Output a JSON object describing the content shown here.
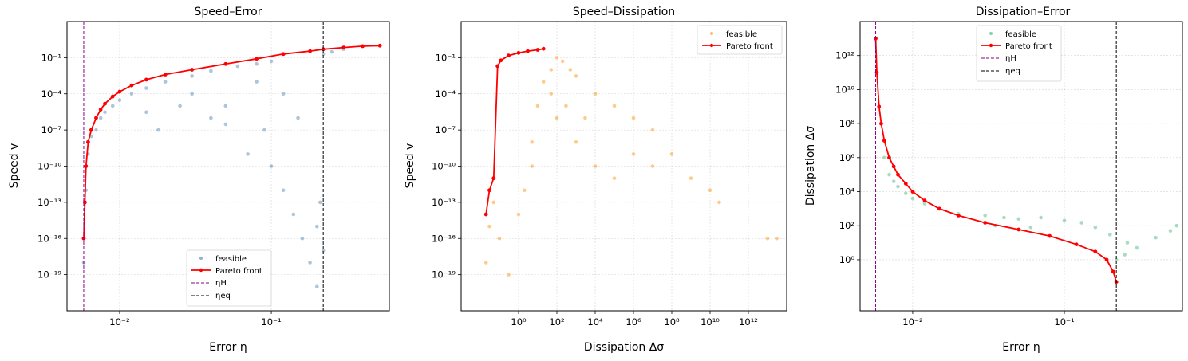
{
  "chart_data": [
    {
      "type": "scatter",
      "title": "Speed–Error",
      "xlabel": "Error η",
      "ylabel": "Speed v",
      "xscale": "log",
      "yscale": "log",
      "xlim": [
        0.0045,
        0.6
      ],
      "ylim": [
        1e-22,
        100
      ],
      "xticks": [
        {
          "value": 0.01,
          "label": "10⁻²"
        },
        {
          "value": 0.1,
          "label": "10⁻¹"
        }
      ],
      "yticks": [
        {
          "value": 1e-19,
          "label": "10⁻¹⁹"
        },
        {
          "value": 1e-16,
          "label": "10⁻¹⁶"
        },
        {
          "value": 1e-13,
          "label": "10⁻¹³"
        },
        {
          "value": 1e-10,
          "label": "10⁻¹⁰"
        },
        {
          "value": 1e-07,
          "label": "10⁻⁷"
        },
        {
          "value": 0.0001,
          "label": "10⁻⁴"
        },
        {
          "value": 0.1,
          "label": "10⁻¹"
        }
      ],
      "grid": true,
      "legend_position": "lower-right",
      "series": [
        {
          "name": "feasible",
          "kind": "scatter",
          "color": "#4a7fb0",
          "points": [
            [
              0.0058,
              1e-18
            ],
            [
              0.006,
              1e-12
            ],
            [
              0.0062,
              1e-09
            ],
            [
              0.0065,
              3e-08
            ],
            [
              0.007,
              1e-07
            ],
            [
              0.0075,
              1e-06
            ],
            [
              0.008,
              3e-06
            ],
            [
              0.009,
              1e-05
            ],
            [
              0.01,
              3e-05
            ],
            [
              0.012,
              0.0001
            ],
            [
              0.015,
              0.0003
            ],
            [
              0.02,
              0.001
            ],
            [
              0.03,
              0.003
            ],
            [
              0.04,
              0.008
            ],
            [
              0.06,
              0.02
            ],
            [
              0.08,
              0.03
            ],
            [
              0.1,
              0.05
            ],
            [
              0.015,
              3e-06
            ],
            [
              0.025,
              1e-05
            ],
            [
              0.04,
              1e-06
            ],
            [
              0.05,
              3e-07
            ],
            [
              0.07,
              1e-09
            ],
            [
              0.09,
              1e-07
            ],
            [
              0.1,
              1e-10
            ],
            [
              0.12,
              1e-12
            ],
            [
              0.14,
              1e-14
            ],
            [
              0.16,
              1e-16
            ],
            [
              0.18,
              1e-18
            ],
            [
              0.2,
              1e-20
            ],
            [
              0.2,
              1e-15
            ],
            [
              0.21,
              1e-13
            ],
            [
              0.22,
              1e-17
            ],
            [
              0.018,
              1e-07
            ],
            [
              0.03,
              0.0001
            ],
            [
              0.05,
              1e-05
            ],
            [
              0.08,
              0.001
            ],
            [
              0.12,
              0.0001
            ],
            [
              0.15,
              1e-06
            ],
            [
              0.22,
              0.2
            ],
            [
              0.25,
              0.3
            ],
            [
              0.3,
              0.5
            ]
          ]
        },
        {
          "name": "Pareto front",
          "kind": "line",
          "color": "#ff0000",
          "points": [
            [
              0.0058,
              1e-16
            ],
            [
              0.0059,
              1e-13
            ],
            [
              0.006,
              1e-10
            ],
            [
              0.0062,
              1e-08
            ],
            [
              0.0065,
              1e-07
            ],
            [
              0.007,
              1e-06
            ],
            [
              0.0075,
              5e-06
            ],
            [
              0.008,
              1.5e-05
            ],
            [
              0.009,
              6e-05
            ],
            [
              0.01,
              0.00015
            ],
            [
              0.012,
              0.0005
            ],
            [
              0.015,
              0.0015
            ],
            [
              0.02,
              0.004
            ],
            [
              0.03,
              0.01
            ],
            [
              0.05,
              0.03
            ],
            [
              0.08,
              0.08
            ],
            [
              0.12,
              0.2
            ],
            [
              0.18,
              0.35
            ],
            [
              0.22,
              0.5
            ],
            [
              0.3,
              0.7
            ],
            [
              0.4,
              0.9
            ],
            [
              0.52,
              1.0
            ]
          ]
        },
        {
          "name": "ηH",
          "kind": "vline",
          "color": "#8b008b",
          "x": 0.0058
        },
        {
          "name": "ηeq",
          "kind": "vline",
          "color": "#000000",
          "x": 0.22
        }
      ]
    },
    {
      "type": "scatter",
      "title": "Speed–Dissipation",
      "xlabel": "Dissipation Δσ",
      "ylabel": "Speed v",
      "xscale": "log",
      "yscale": "log",
      "xlim": [
        0.001,
        100000000000000.0
      ],
      "ylim": [
        1e-22,
        100
      ],
      "xticks": [
        {
          "value": 1,
          "label": "10⁰"
        },
        {
          "value": 100,
          "label": "10²"
        },
        {
          "value": 10000,
          "label": "10⁴"
        },
        {
          "value": 1000000.0,
          "label": "10⁶"
        },
        {
          "value": 100000000.0,
          "label": "10⁸"
        },
        {
          "value": 10000000000.0,
          "label": "10¹⁰"
        },
        {
          "value": 1000000000000.0,
          "label": "10¹²"
        }
      ],
      "yticks": [
        {
          "value": 1e-19,
          "label": "10⁻¹⁹"
        },
        {
          "value": 1e-16,
          "label": "10⁻¹⁶"
        },
        {
          "value": 1e-13,
          "label": "10⁻¹³"
        },
        {
          "value": 1e-10,
          "label": "10⁻¹⁰"
        },
        {
          "value": 1e-07,
          "label": "10⁻⁷"
        },
        {
          "value": 0.0001,
          "label": "10⁻⁴"
        },
        {
          "value": 0.1,
          "label": "10⁻¹"
        }
      ],
      "grid": true,
      "legend_position": "top-right",
      "series": [
        {
          "name": "feasible",
          "kind": "scatter",
          "color": "#ff8c00",
          "points": [
            [
              0.02,
              1e-18
            ],
            [
              0.03,
              1e-15
            ],
            [
              0.05,
              1e-13
            ],
            [
              0.1,
              1e-16
            ],
            [
              0.3,
              1e-19
            ],
            [
              1,
              1e-14
            ],
            [
              2,
              1e-12
            ],
            [
              5,
              1e-10
            ],
            [
              5,
              1e-08
            ],
            [
              10,
              1e-05
            ],
            [
              20,
              0.001
            ],
            [
              50,
              0.01
            ],
            [
              100,
              0.1
            ],
            [
              200,
              0.05
            ],
            [
              500,
              0.01
            ],
            [
              1000,
              0.003
            ],
            [
              10000.0,
              0.0001
            ],
            [
              100000.0,
              1e-05
            ],
            [
              1000000.0,
              1e-06
            ],
            [
              10000000.0,
              1e-07
            ],
            [
              100000000.0,
              1e-09
            ],
            [
              1000000000.0,
              1e-11
            ],
            [
              10000000000.0,
              1e-12
            ],
            [
              30000000000.0,
              1e-13
            ],
            [
              10000000000000.0,
              1e-16
            ],
            [
              30000000000000.0,
              1e-16
            ],
            [
              100,
              1e-06
            ],
            [
              1000,
              1e-08
            ],
            [
              10000.0,
              1e-10
            ],
            [
              100000.0,
              1e-11
            ],
            [
              1000000.0,
              1e-09
            ],
            [
              10000000.0,
              1e-10
            ],
            [
              50,
              0.0001
            ],
            [
              300,
              1e-05
            ],
            [
              3000,
              1e-06
            ]
          ]
        },
        {
          "name": "Pareto front",
          "kind": "line",
          "color": "#ff0000",
          "points": [
            [
              0.02,
              1e-14
            ],
            [
              0.03,
              1e-12
            ],
            [
              0.05,
              1e-11
            ],
            [
              0.08,
              0.02
            ],
            [
              0.12,
              0.06
            ],
            [
              0.3,
              0.15
            ],
            [
              1,
              0.25
            ],
            [
              3,
              0.35
            ],
            [
              10,
              0.45
            ],
            [
              20,
              0.55
            ]
          ]
        }
      ]
    },
    {
      "type": "scatter",
      "title": "Dissipation–Error",
      "xlabel": "Error η",
      "ylabel": "Dissipation Δσ",
      "xscale": "log",
      "yscale": "log",
      "xlim": [
        0.0045,
        0.6
      ],
      "ylim": [
        0.001,
        100000000000000.0
      ],
      "xticks": [
        {
          "value": 0.01,
          "label": "10⁻²"
        },
        {
          "value": 0.1,
          "label": "10⁻¹"
        }
      ],
      "yticks": [
        {
          "value": 1,
          "label": "10⁰"
        },
        {
          "value": 100,
          "label": "10²"
        },
        {
          "value": 10000,
          "label": "10⁴"
        },
        {
          "value": 1000000.0,
          "label": "10⁶"
        },
        {
          "value": 100000000.0,
          "label": "10⁸"
        },
        {
          "value": 10000000000.0,
          "label": "10¹⁰"
        },
        {
          "value": 1000000000000.0,
          "label": "10¹²"
        }
      ],
      "grid": true,
      "legend_position": "top-center",
      "series": [
        {
          "name": "feasible",
          "kind": "scatter",
          "color": "#3cb371",
          "points": [
            [
              0.0065,
              1000000.0
            ],
            [
              0.007,
              100000.0
            ],
            [
              0.0075,
              40000.0
            ],
            [
              0.008,
              20000.0
            ],
            [
              0.009,
              8000.0
            ],
            [
              0.01,
              4000.0
            ],
            [
              0.012,
              2000.0
            ],
            [
              0.015,
              1000.0
            ],
            [
              0.02,
              500
            ],
            [
              0.03,
              400
            ],
            [
              0.04,
              300
            ],
            [
              0.05,
              250
            ],
            [
              0.07,
              300
            ],
            [
              0.1,
              200
            ],
            [
              0.13,
              150
            ],
            [
              0.16,
              80
            ],
            [
              0.2,
              30
            ],
            [
              0.22,
              1
            ],
            [
              0.25,
              2
            ],
            [
              0.3,
              5
            ],
            [
              0.4,
              20
            ],
            [
              0.5,
              50
            ],
            [
              0.55,
              100
            ],
            [
              0.26,
              10
            ],
            [
              0.035,
              100
            ],
            [
              0.06,
              80
            ]
          ]
        },
        {
          "name": "Pareto front",
          "kind": "line",
          "color": "#ff0000",
          "points": [
            [
              0.0057,
              10000000000000.0
            ],
            [
              0.0058,
              100000000000.0
            ],
            [
              0.006,
              1000000000.0
            ],
            [
              0.0062,
              100000000.0
            ],
            [
              0.0065,
              10000000.0
            ],
            [
              0.007,
              1000000.0
            ],
            [
              0.0075,
              300000.0
            ],
            [
              0.008,
              100000.0
            ],
            [
              0.009,
              30000.0
            ],
            [
              0.01,
              10000.0
            ],
            [
              0.012,
              3000.0
            ],
            [
              0.015,
              1000.0
            ],
            [
              0.02,
              400
            ],
            [
              0.03,
              150
            ],
            [
              0.05,
              60
            ],
            [
              0.08,
              25
            ],
            [
              0.12,
              8
            ],
            [
              0.16,
              3
            ],
            [
              0.19,
              1
            ],
            [
              0.21,
              0.2
            ],
            [
              0.22,
              0.05
            ]
          ]
        },
        {
          "name": "ηH",
          "kind": "vline",
          "color": "#8b008b",
          "x": 0.0057
        },
        {
          "name": "ηeq",
          "kind": "vline",
          "color": "#000000",
          "x": 0.22
        }
      ]
    }
  ]
}
